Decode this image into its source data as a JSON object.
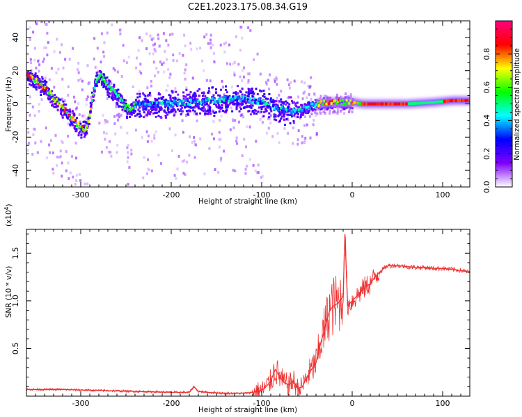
{
  "title": "C2E1.2023.175.08.34.G19",
  "spectrogram": {
    "type": "heatmap",
    "xlabel": "Height of straight line (km)",
    "ylabel": "Frequency (Hz)",
    "xlim": [
      -360,
      130
    ],
    "ylim": [
      -50,
      50
    ],
    "xticks": [
      -300,
      -200,
      -100,
      0,
      100
    ],
    "yticks": [
      -40,
      -20,
      0,
      20,
      40
    ],
    "xtick_labels": [
      "-300",
      "-200",
      "-100",
      "0",
      "100"
    ],
    "ytick_labels": [
      "-40",
      "-20",
      "0",
      "20",
      "40"
    ],
    "ridge": {
      "x": [
        -360,
        -350,
        -340,
        -330,
        -320,
        -310,
        -300,
        -295,
        -290,
        -285,
        -280,
        -275,
        -270,
        -260,
        -250,
        -240,
        -230,
        -220,
        -200,
        -180,
        -160,
        -140,
        -120,
        -100,
        -90,
        -80,
        -70,
        -60,
        -50,
        -40,
        -30,
        -20,
        -10,
        0,
        10,
        30,
        60,
        90,
        110,
        130
      ],
      "y": [
        17,
        14,
        9,
        3,
        -3,
        -9,
        -15,
        -15,
        -2,
        12,
        18,
        14,
        10,
        5,
        -3,
        -1,
        0,
        0,
        0,
        1,
        2,
        3,
        3,
        1,
        -2,
        -3,
        -4,
        -4,
        -2,
        0,
        1,
        1,
        1,
        1,
        0,
        0,
        0,
        1,
        2,
        2
      ]
    }
  },
  "colorbar": {
    "label": "Normalized spectral amplitude",
    "ticks": [
      0.0,
      0.2,
      0.4,
      0.6,
      0.8
    ],
    "tick_labels": [
      "0.0",
      "0.2",
      "0.4",
      "0.6",
      "0.8"
    ],
    "colors": [
      "#ffffff",
      "#8000ff",
      "#0000ff",
      "#00ffff",
      "#00ff00",
      "#ffff00",
      "#ff0000",
      "#ff0080"
    ]
  },
  "chart_data": {
    "type": "line",
    "xlabel": "Height of straight line (km)",
    "ylabel": "SNR (10 * v/v)",
    "multiplier": "(x10",
    "multiplier_exp": "4",
    "multiplier_close": ")",
    "xlim": [
      -360,
      130
    ],
    "ylim": [
      0,
      1.75
    ],
    "xticks": [
      -300,
      -200,
      -100,
      0,
      100
    ],
    "yticks": [
      0.5,
      1.0,
      1.5
    ],
    "xtick_labels": [
      "-300",
      "-200",
      "-100",
      "0",
      "100"
    ],
    "ytick_labels": [
      "0.5",
      "1.0",
      "1.5"
    ],
    "color": "#ee3030",
    "x": [
      -360,
      -340,
      -320,
      -300,
      -280,
      -260,
      -240,
      -220,
      -200,
      -180,
      -175,
      -170,
      -160,
      -140,
      -120,
      -110,
      -100,
      -95,
      -90,
      -85,
      -80,
      -75,
      -70,
      -65,
      -60,
      -55,
      -50,
      -45,
      -40,
      -35,
      -30,
      -25,
      -20,
      -15,
      -10,
      -8,
      -5,
      0,
      5,
      10,
      15,
      20,
      25,
      30,
      35,
      40,
      50,
      60,
      70,
      80,
      90,
      100,
      110,
      120,
      130
    ],
    "y": [
      0.07,
      0.07,
      0.07,
      0.065,
      0.06,
      0.055,
      0.05,
      0.045,
      0.04,
      0.04,
      0.1,
      0.05,
      0.04,
      0.03,
      0.03,
      0.04,
      0.06,
      0.1,
      0.16,
      0.28,
      0.2,
      0.14,
      0.12,
      0.16,
      0.08,
      0.1,
      0.2,
      0.28,
      0.35,
      0.55,
      0.72,
      0.9,
      0.95,
      0.98,
      1.05,
      1.7,
      0.95,
      1.0,
      1.05,
      1.1,
      1.15,
      1.18,
      1.25,
      1.3,
      1.34,
      1.37,
      1.37,
      1.36,
      1.35,
      1.35,
      1.34,
      1.34,
      1.33,
      1.32,
      1.3
    ]
  }
}
